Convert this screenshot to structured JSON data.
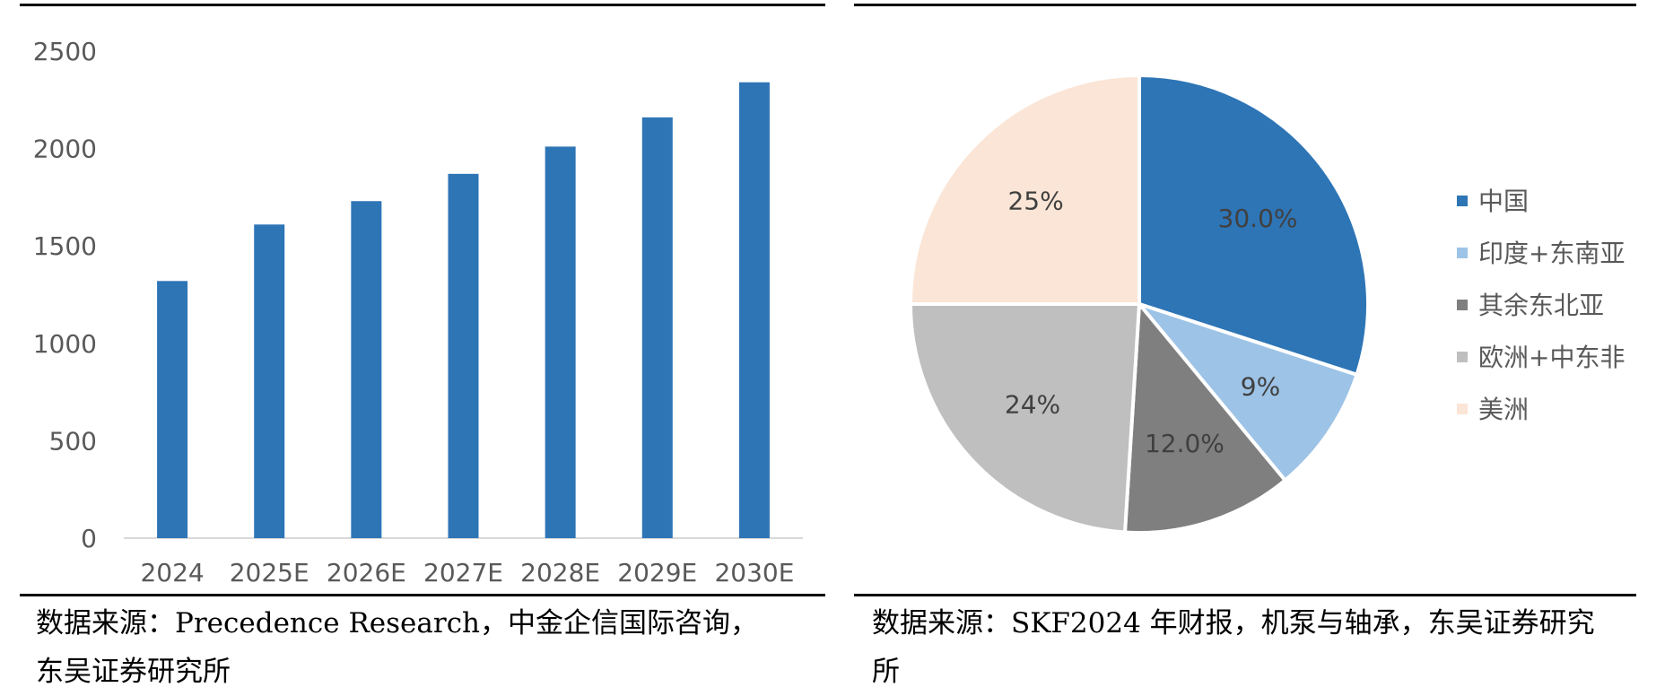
{
  "chart_data": [
    {
      "type": "bar",
      "categories": [
        "2024",
        "2025E",
        "2026E",
        "2027E",
        "2028E",
        "2029E",
        "2030E"
      ],
      "values": [
        1320,
        1610,
        1730,
        1870,
        2010,
        2160,
        2340
      ],
      "title": "",
      "xlabel": "",
      "ylabel": "",
      "ylim": [
        0,
        2500
      ],
      "yticks": [
        "0",
        "500",
        "1000",
        "1500",
        "2000",
        "2500"
      ],
      "grid": false,
      "bar_color": "#2E75B6"
    },
    {
      "type": "pie",
      "labels": [
        "中国",
        "印度+东南亚",
        "其余东北亚",
        "欧洲+中东非",
        "美洲"
      ],
      "values": [
        30.0,
        9,
        12.0,
        24,
        25
      ],
      "data_labels": [
        "30.0%",
        "9%",
        "12.0%",
        "24%",
        "25%"
      ],
      "colors": [
        "#2E75B6",
        "#9DC3E6",
        "#7F7F7F",
        "#BFBFBF",
        "#FBE5D6"
      ],
      "legend_position": "right"
    }
  ],
  "sources": {
    "left": "数据来源：Precedence Research，中金企信国际咨询，东吴证券研究所",
    "right": "数据来源：SKF2024 年财报，机泵与轴承，东吴证券研究所"
  }
}
